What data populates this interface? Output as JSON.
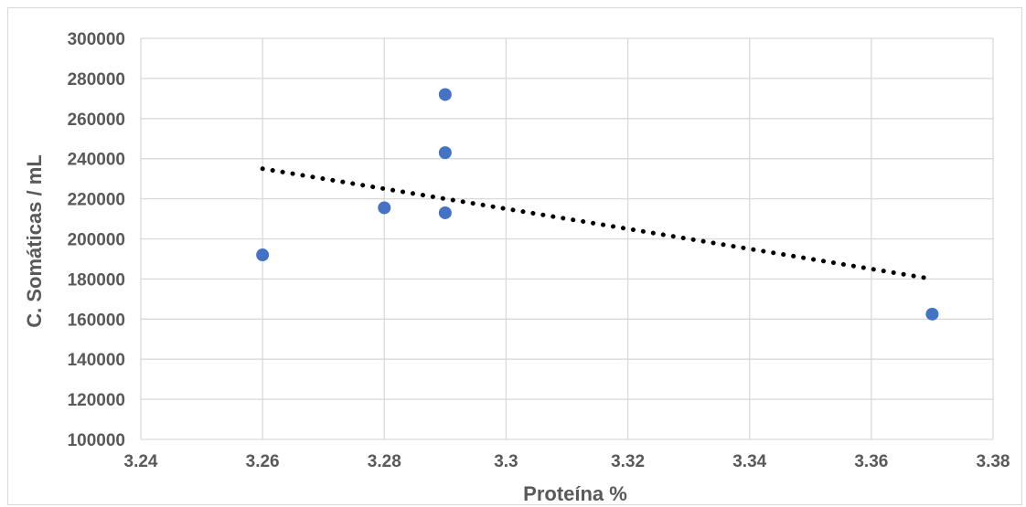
{
  "chart_data": {
    "type": "scatter",
    "xlabel": "Proteína %",
    "ylabel": "C. Somáticas / mL",
    "xlim": [
      3.24,
      3.38
    ],
    "ylim": [
      100000,
      300000
    ],
    "x_ticks": [
      "3.24",
      "3.26",
      "3.28",
      "3.3",
      "3.32",
      "3.34",
      "3.36",
      "3.38"
    ],
    "y_ticks": [
      "100000",
      "120000",
      "140000",
      "160000",
      "180000",
      "200000",
      "220000",
      "240000",
      "260000",
      "280000",
      "300000"
    ],
    "x_tick_values": [
      3.24,
      3.26,
      3.28,
      3.3,
      3.32,
      3.34,
      3.36,
      3.38
    ],
    "y_tick_values": [
      100000,
      120000,
      140000,
      160000,
      180000,
      200000,
      220000,
      240000,
      260000,
      280000,
      300000
    ],
    "grid": true,
    "series": [
      {
        "points": [
          {
            "x": 3.26,
            "y": 192000
          },
          {
            "x": 3.28,
            "y": 215500
          },
          {
            "x": 3.29,
            "y": 272000
          },
          {
            "x": 3.29,
            "y": 243000
          },
          {
            "x": 3.29,
            "y": 213000
          },
          {
            "x": 3.37,
            "y": 162500
          }
        ],
        "color": "#4472c4"
      }
    ],
    "trendline": {
      "type": "linear",
      "style": "dotted",
      "color": "#000000",
      "start": {
        "x": 3.26,
        "y": 235000
      },
      "end": {
        "x": 3.37,
        "y": 180000
      }
    }
  }
}
